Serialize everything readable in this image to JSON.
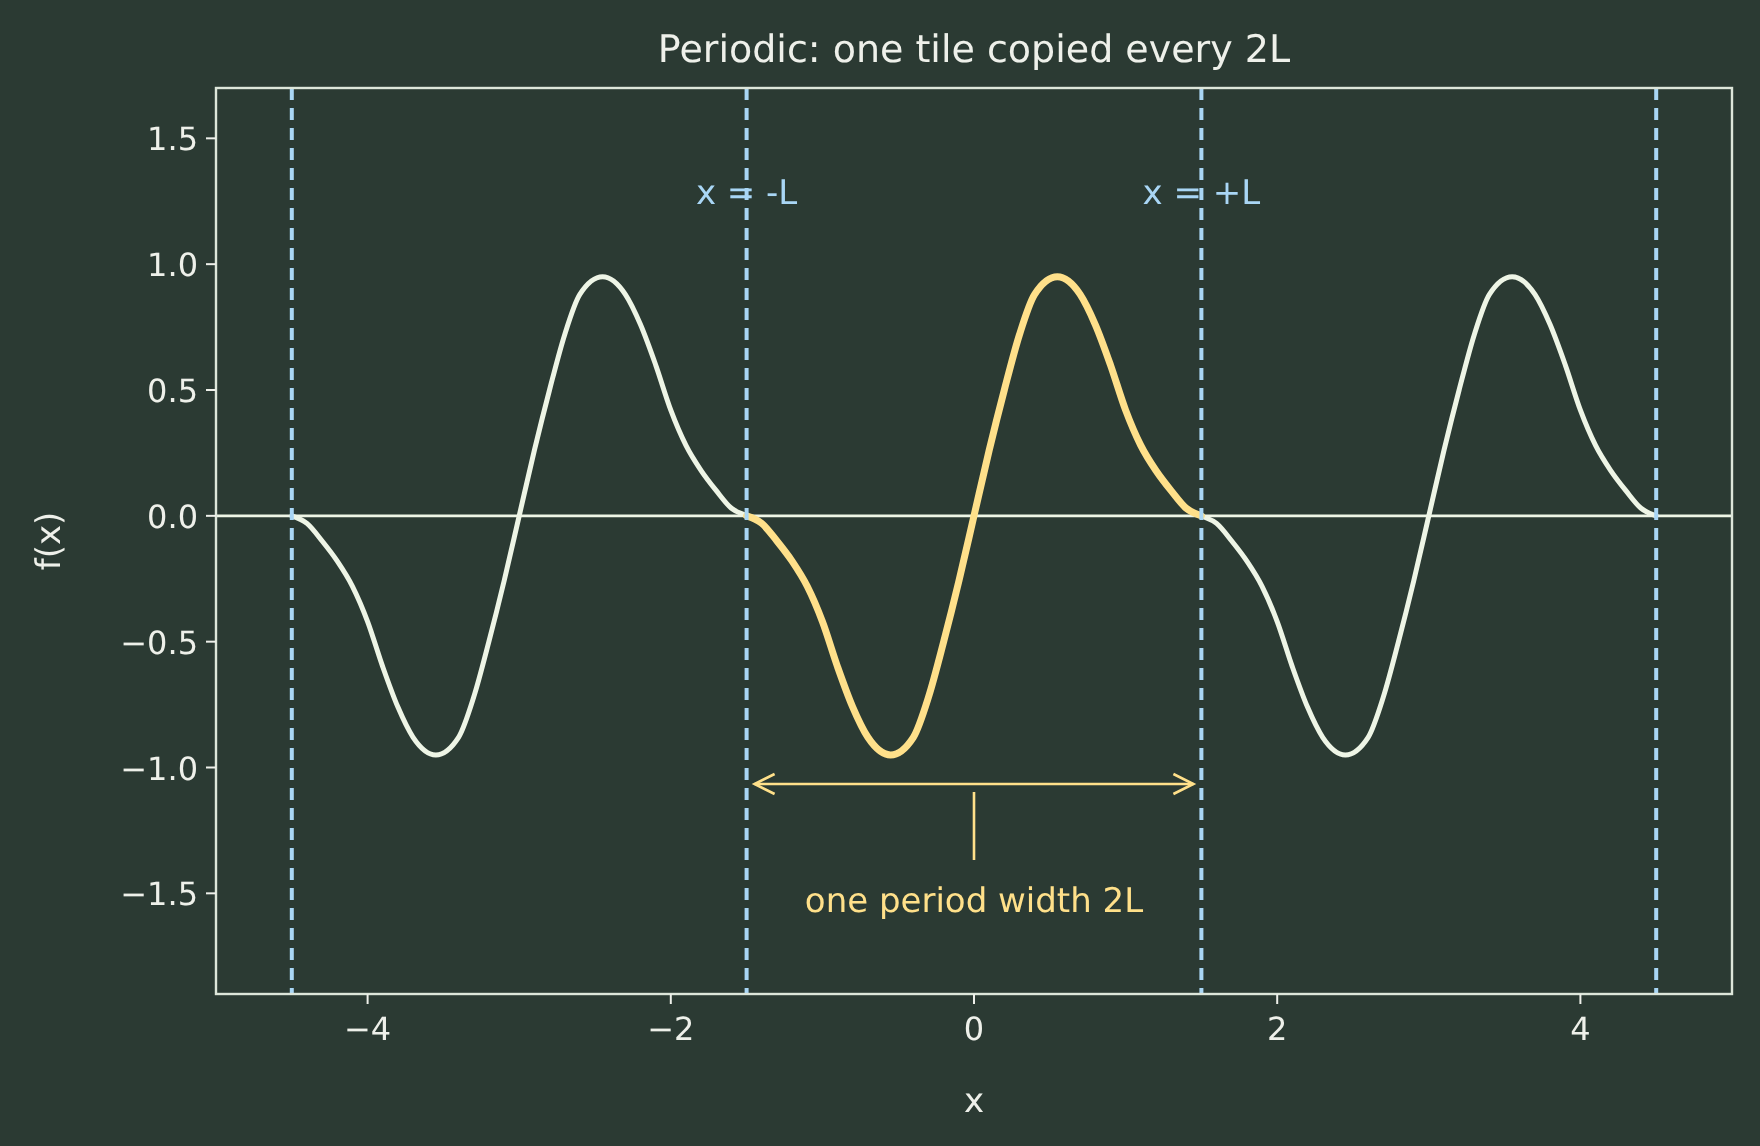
{
  "chart_data": {
    "type": "line",
    "title": "Periodic: one tile copied every 2L",
    "xlabel": "x",
    "ylabel": "f(x)",
    "xlim": [
      -5,
      5
    ],
    "ylim": [
      -1.9,
      1.7
    ],
    "xticks": [
      {
        "value": -4,
        "label": "−4"
      },
      {
        "value": -2,
        "label": "−2"
      },
      0,
      2,
      4
    ],
    "yticks": [
      {
        "value": -1.5,
        "label": "−1.5"
      },
      {
        "value": -1,
        "label": "−1.0"
      },
      {
        "value": -0.5,
        "label": "−0.5"
      },
      {
        "value": 0,
        "label": "0.0"
      },
      {
        "value": 0.5,
        "label": "0.5"
      },
      {
        "value": 1,
        "label": "1.0"
      },
      {
        "value": 1.5,
        "label": "1.5"
      }
    ],
    "grid": false,
    "line_style": "solid",
    "marker": "none",
    "series": [
      {
        "color": "#eef5e6",
        "x": [
          -4.5,
          -4.4,
          -4.3,
          -4.2,
          -4.1,
          -4.0,
          -3.9,
          -3.8,
          -3.7,
          -3.55,
          -3.4,
          -3.3,
          -3.2,
          -3.1,
          -3.0,
          -2.9,
          -2.8,
          -2.7,
          -2.6,
          -2.45,
          -2.3,
          -2.2,
          -2.1,
          -2.0,
          -1.9,
          -1.8,
          -1.7,
          -1.6,
          -1.5,
          -1.4,
          -1.3,
          -1.2,
          -1.1,
          -1.0,
          -0.9,
          -0.8,
          -0.7,
          -0.55,
          -0.4,
          -0.3,
          -0.2,
          -0.1,
          0,
          0.1,
          0.2,
          0.3,
          0.4,
          0.55,
          0.7,
          0.8,
          0.9,
          1.0,
          1.1,
          1.2,
          1.3,
          1.4,
          1.5,
          1.6,
          1.7,
          1.8,
          1.9,
          2.0,
          2.1,
          2.2,
          2.3,
          2.45,
          2.6,
          2.7,
          2.8,
          2.9,
          3.0,
          3.1,
          3.2,
          3.3,
          3.4,
          3.55,
          3.7,
          3.8,
          3.9,
          4.0,
          4.1,
          4.2,
          4.3,
          4.4,
          4.5
        ],
        "values": [
          0,
          -0.03,
          -0.1,
          -0.18,
          -0.28,
          -0.42,
          -0.6,
          -0.76,
          -0.88,
          -0.95,
          -0.88,
          -0.72,
          -0.5,
          -0.26,
          0,
          0.26,
          0.5,
          0.72,
          0.88,
          0.95,
          0.88,
          0.76,
          0.6,
          0.42,
          0.28,
          0.18,
          0.1,
          0.03,
          0,
          -0.03,
          -0.1,
          -0.18,
          -0.28,
          -0.42,
          -0.6,
          -0.76,
          -0.88,
          -0.95,
          -0.88,
          -0.72,
          -0.5,
          -0.26,
          0,
          0.26,
          0.5,
          0.72,
          0.88,
          0.95,
          0.88,
          0.76,
          0.6,
          0.42,
          0.28,
          0.18,
          0.1,
          0.03,
          0,
          -0.03,
          -0.1,
          -0.18,
          -0.28,
          -0.42,
          -0.6,
          -0.76,
          -0.88,
          -0.95,
          -0.88,
          -0.72,
          -0.5,
          -0.26,
          0,
          0.26,
          0.5,
          0.72,
          0.88,
          0.95,
          0.88,
          0.76,
          0.6,
          0.42,
          0.28,
          0.18,
          0.1,
          0.03,
          0
        ]
      },
      {
        "color": "#ffe08a",
        "x": [
          -1.5,
          -1.4,
          -1.3,
          -1.2,
          -1.1,
          -1.0,
          -0.9,
          -0.8,
          -0.7,
          -0.55,
          -0.4,
          -0.3,
          -0.2,
          -0.1,
          0,
          0.1,
          0.2,
          0.3,
          0.4,
          0.55,
          0.7,
          0.8,
          0.9,
          1.0,
          1.1,
          1.2,
          1.3,
          1.4,
          1.5
        ],
        "values": [
          0,
          -0.03,
          -0.1,
          -0.18,
          -0.28,
          -0.42,
          -0.6,
          -0.76,
          -0.88,
          -0.95,
          -0.88,
          -0.72,
          -0.5,
          -0.26,
          0,
          0.26,
          0.5,
          0.72,
          0.88,
          0.95,
          0.88,
          0.76,
          0.6,
          0.42,
          0.28,
          0.18,
          0.1,
          0.03,
          0
        ]
      }
    ],
    "ref_lines": [
      {
        "axis": "y",
        "value": 0,
        "color": "#eef5e6",
        "line_style": "solid"
      },
      {
        "axis": "x",
        "value": -4.5,
        "color": "#a9d6f5",
        "line_style": "dashed"
      },
      {
        "axis": "x",
        "value": -1.5,
        "label": "x = -L",
        "color": "#a9d6f5",
        "line_style": "dashed"
      },
      {
        "axis": "x",
        "value": 1.5,
        "label": "x = +L",
        "color": "#a9d6f5",
        "line_style": "dashed"
      },
      {
        "axis": "x",
        "value": 4.5,
        "color": "#a9d6f5",
        "line_style": "dashed"
      }
    ],
    "annotations": [
      "one period width 2L"
    ]
  }
}
